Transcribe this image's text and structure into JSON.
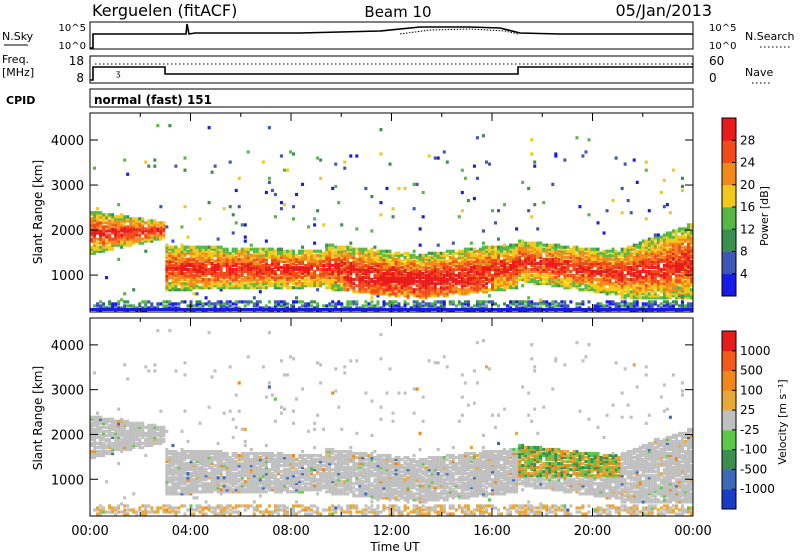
{
  "header": {
    "station": "Kerguelen (fitACF)",
    "beam": "Beam 10",
    "date": "05/Jan/2013"
  },
  "noise_panel": {
    "left_label": "N.Sky",
    "right_label": "N.Search",
    "left_ticks": [
      "10^5",
      "10^0"
    ],
    "right_ticks": [
      "10^5",
      "10^0"
    ]
  },
  "freq_panel": {
    "left_label_line1": "Freq.",
    "left_label_line2": "[MHz]",
    "left_ticks": [
      "18",
      "8"
    ],
    "right_label": "Nave",
    "right_ticks": [
      "60",
      "0"
    ]
  },
  "cpid_panel": {
    "label": "CPID",
    "value": "normal (fast) 151"
  },
  "chart_data": [
    {
      "type": "heatmap",
      "name": "power",
      "ylabel": "Slant Range [km]",
      "xlabel": "",
      "y_ticks": [
        "1000",
        "2000",
        "3000",
        "4000"
      ],
      "ylim": [
        180,
        4600
      ],
      "xlim": [
        0,
        24
      ],
      "colorbar": {
        "label": "Power [dB]",
        "ticks": [
          "4",
          "8",
          "12",
          "16",
          "20",
          "24",
          "28"
        ],
        "colors": [
          "#1a1ae8",
          "#3e56b8",
          "#3a8e4e",
          "#55b845",
          "#f2c81a",
          "#f28a1a",
          "#f24a1a",
          "#e81a1a"
        ]
      }
    },
    {
      "type": "heatmap",
      "name": "velocity",
      "ylabel": "Slant Range [km]",
      "xlabel": "Time UT",
      "x_ticks": [
        "00:00",
        "04:00",
        "08:00",
        "12:00",
        "16:00",
        "20:00",
        "00:00"
      ],
      "y_ticks": [
        "1000",
        "2000",
        "3000",
        "4000"
      ],
      "ylim": [
        180,
        4600
      ],
      "xlim": [
        0,
        24
      ],
      "colorbar": {
        "label": "Velocity [m s⁻¹]",
        "ticks": [
          "1000",
          "500",
          "100",
          "25",
          "-25",
          "-100",
          "-500",
          "-1000"
        ],
        "colors": [
          "#1a3ac8",
          "#3a6ab8",
          "#3a8e4e",
          "#5cc848",
          "#c0c0c0",
          "#e8a838",
          "#f2861a",
          "#f25a1a",
          "#e81a1a"
        ]
      }
    }
  ]
}
